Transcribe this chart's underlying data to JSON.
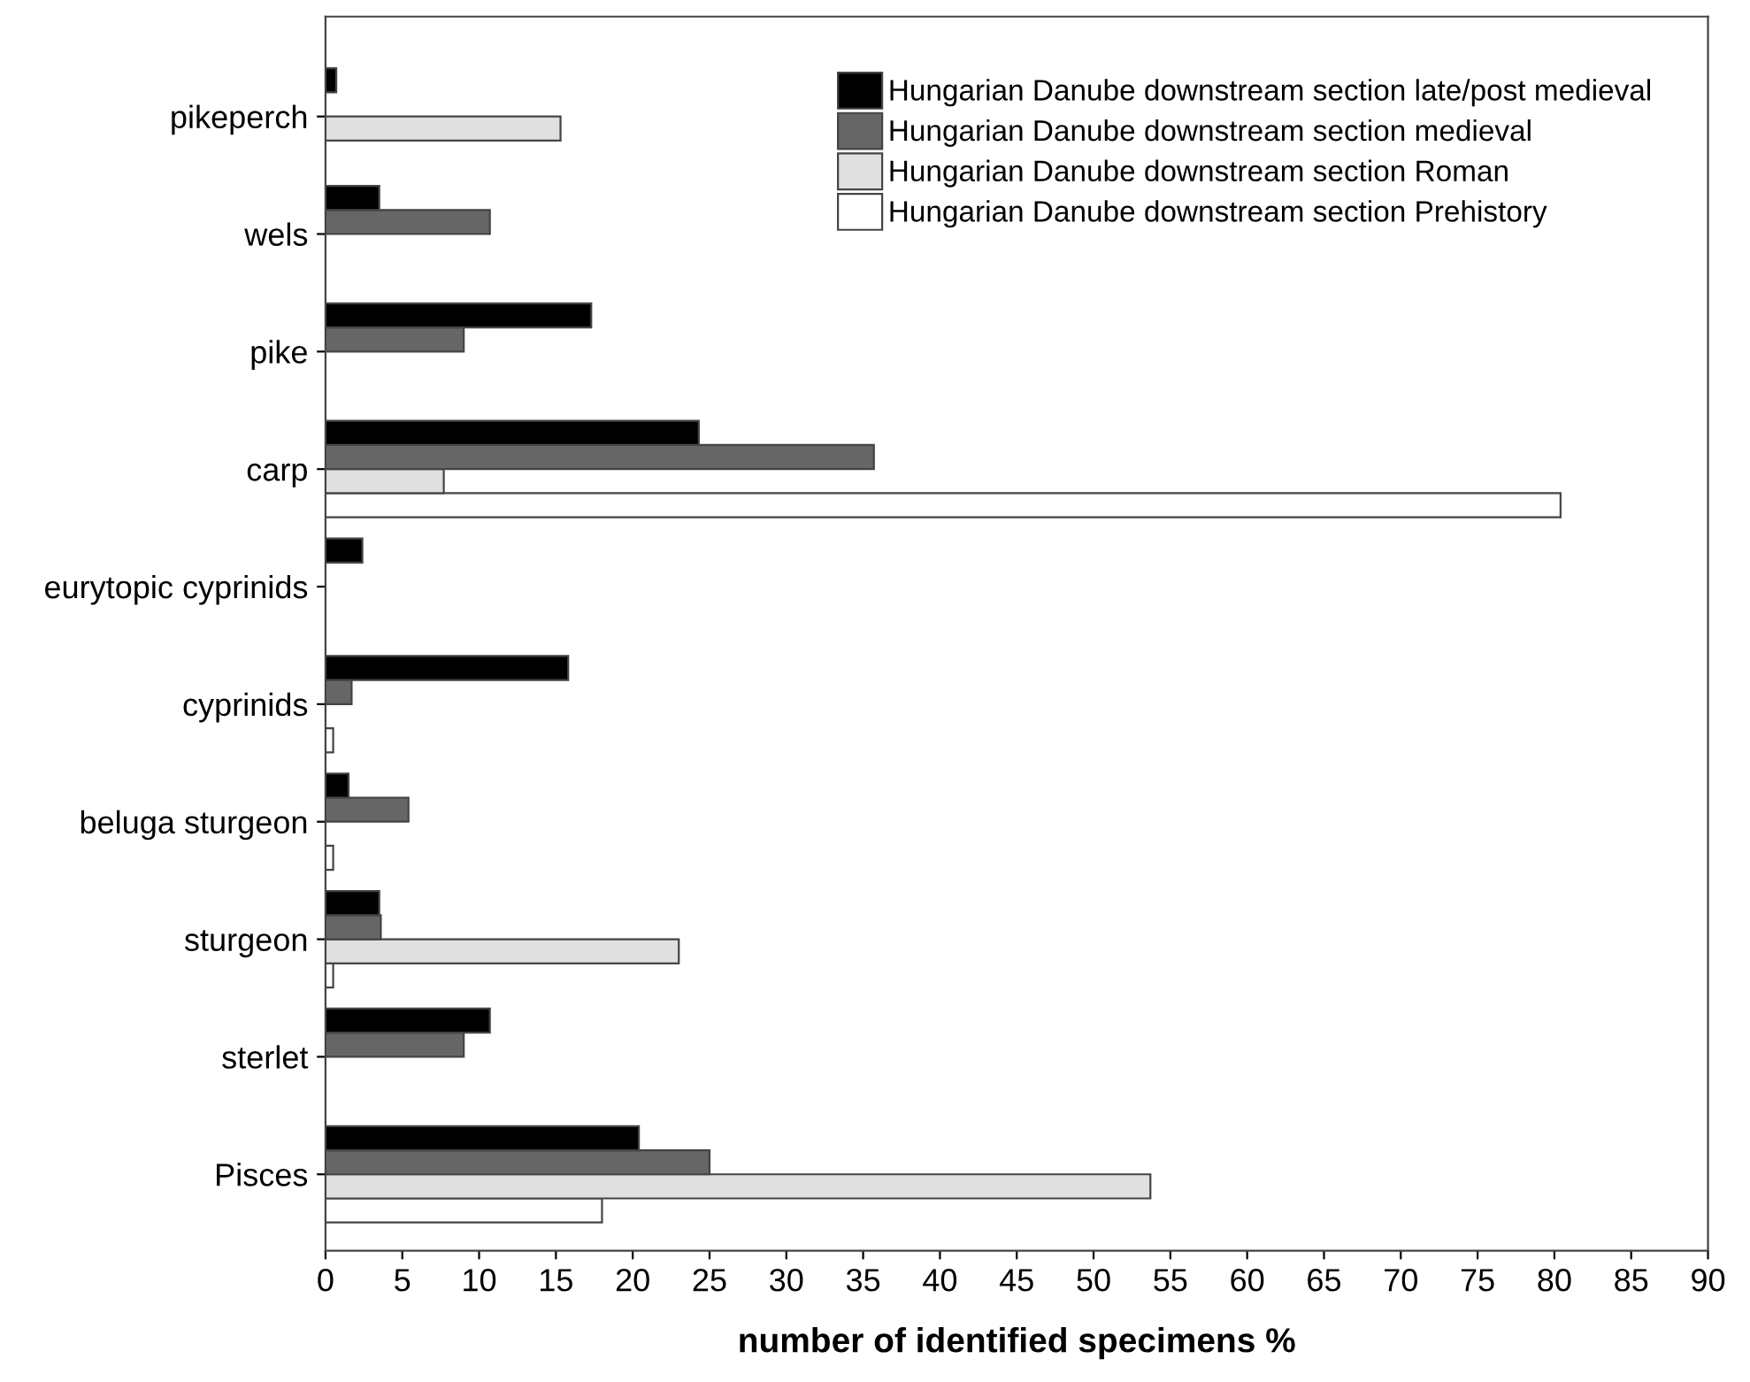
{
  "chart_data": {
    "type": "bar",
    "orientation": "horizontal",
    "xlabel": "number of identified specimens %",
    "categories": [
      "pikeperch",
      "wels",
      "pike",
      "carp",
      "eurytopic cyprinids",
      "cyprinids",
      "beluga sturgeon",
      "sturgeon",
      "sterlet",
      "Pisces"
    ],
    "series": [
      {
        "name": "Hungarian Danube downstream section Prehistory",
        "color": "#ffffff",
        "values": [
          null,
          null,
          null,
          80.4,
          null,
          0.5,
          0.5,
          0.5,
          null,
          18.0
        ]
      },
      {
        "name": "Hungarian Danube downstream section Roman",
        "color": "#e0e0e0",
        "values": [
          15.3,
          null,
          null,
          7.7,
          null,
          null,
          null,
          23.0,
          null,
          53.7
        ]
      },
      {
        "name": "Hungarian Danube downstream section medieval",
        "color": "#666666",
        "values": [
          null,
          10.7,
          9.0,
          35.7,
          null,
          1.7,
          5.4,
          3.6,
          9.0,
          25.0
        ]
      },
      {
        "name": "Hungarian Danube downstream section late/post medieval",
        "color": "#000000",
        "values": [
          0.7,
          3.5,
          17.3,
          24.3,
          2.4,
          15.8,
          1.5,
          3.5,
          10.7,
          20.4
        ]
      }
    ],
    "xlim": [
      0,
      90
    ],
    "xticks": [
      0,
      5,
      10,
      15,
      20,
      25,
      30,
      35,
      40,
      45,
      50,
      55,
      60,
      65,
      70,
      75,
      80,
      85,
      90
    ],
    "grid": false,
    "legend": "top right"
  }
}
